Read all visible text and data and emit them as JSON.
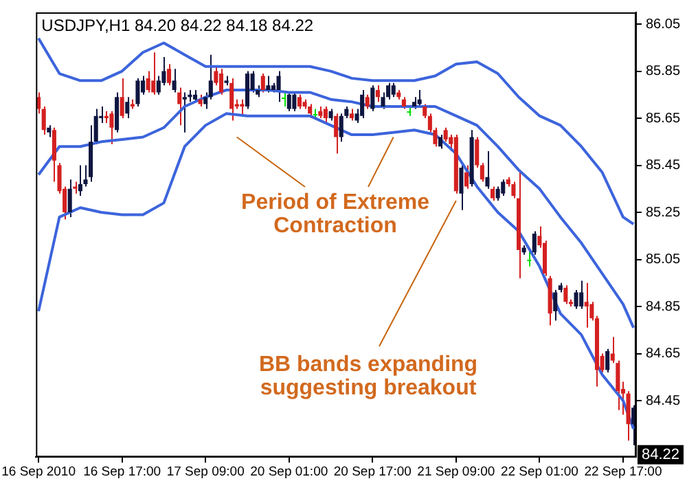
{
  "chart_data": {
    "type": "candlestick",
    "title": "USDJPY,H1 84.20 84.22 84.18 84.22",
    "categories": [
      "16 Sep 2010",
      null,
      null,
      null,
      null,
      null,
      null,
      null,
      null,
      null,
      null,
      null,
      null,
      null,
      null,
      null,
      "16 Sep 17:00",
      null,
      null,
      null,
      null,
      null,
      null,
      null,
      null,
      null,
      null,
      null,
      null,
      null,
      null,
      null,
      "17 Sep 09:00",
      null,
      null,
      null,
      null,
      null,
      null,
      null,
      null,
      null,
      null,
      null,
      null,
      null,
      null,
      null,
      "20 Sep 01:00",
      null,
      null,
      null,
      null,
      null,
      null,
      null,
      null,
      null,
      null,
      null,
      null,
      null,
      null,
      null,
      "20 Sep 17:00",
      null,
      null,
      null,
      null,
      null,
      null,
      null,
      null,
      null,
      null,
      null,
      null,
      null,
      null,
      null,
      "21 Sep 09:00",
      null,
      null,
      null,
      null,
      null,
      null,
      null,
      null,
      null,
      null,
      null,
      null,
      null,
      null,
      null,
      "22 Sep 01:00",
      null,
      null,
      null,
      null,
      null,
      null,
      null,
      null,
      null,
      null,
      null,
      null,
      null,
      null,
      null,
      "22 Sep 17:00",
      null,
      null
    ],
    "ohlc": [
      [
        85.74,
        85.76,
        85.67,
        85.69
      ],
      [
        85.69,
        85.7,
        85.58,
        85.6
      ],
      [
        85.59,
        85.62,
        85.57,
        85.61
      ],
      [
        85.6,
        85.61,
        85.38,
        85.47
      ],
      [
        85.45,
        85.46,
        85.33,
        85.34
      ],
      [
        85.35,
        85.36,
        85.22,
        85.25
      ],
      [
        85.25,
        85.39,
        85.23,
        85.35
      ],
      [
        85.36,
        85.38,
        85.33,
        85.35
      ],
      [
        85.34,
        85.45,
        85.32,
        85.37
      ],
      [
        85.37,
        85.45,
        85.36,
        85.39
      ],
      [
        85.4,
        85.62,
        85.38,
        85.55
      ],
      [
        85.55,
        85.69,
        85.54,
        85.66
      ],
      [
        85.65,
        85.7,
        85.63,
        85.66
      ],
      [
        85.66,
        85.68,
        85.63,
        85.65
      ],
      [
        85.67,
        85.68,
        85.54,
        85.61
      ],
      [
        85.6,
        85.76,
        85.59,
        85.74
      ],
      [
        85.74,
        85.82,
        85.65,
        85.66
      ],
      [
        85.67,
        85.74,
        85.65,
        85.72
      ],
      [
        85.71,
        85.73,
        85.69,
        85.7
      ],
      [
        85.71,
        85.82,
        85.7,
        85.81
      ],
      [
        85.76,
        85.83,
        85.75,
        85.81
      ],
      [
        85.82,
        85.85,
        85.76,
        85.77
      ],
      [
        85.81,
        85.93,
        85.75,
        85.76
      ],
      [
        85.76,
        85.83,
        85.75,
        85.81
      ],
      [
        85.8,
        85.91,
        85.79,
        85.85
      ],
      [
        85.86,
        85.88,
        85.79,
        85.8
      ],
      [
        85.77,
        85.86,
        85.76,
        85.81
      ],
      [
        85.76,
        85.78,
        85.62,
        85.71
      ],
      [
        85.73,
        85.76,
        85.59,
        85.74
      ],
      [
        85.74,
        85.77,
        85.72,
        85.75
      ],
      [
        85.73,
        85.77,
        85.72,
        85.75
      ],
      [
        85.73,
        85.75,
        85.7,
        85.71
      ],
      [
        85.71,
        85.76,
        85.69,
        85.74
      ],
      [
        85.74,
        85.92,
        85.73,
        85.81
      ],
      [
        85.85,
        85.87,
        85.79,
        85.8
      ],
      [
        85.84,
        85.86,
        85.75,
        85.76
      ],
      [
        85.8,
        85.83,
        85.79,
        85.81
      ],
      [
        85.8,
        85.82,
        85.64,
        85.69
      ],
      [
        85.71,
        85.73,
        85.69,
        85.7
      ],
      [
        85.71,
        85.73,
        85.66,
        85.7
      ],
      [
        85.7,
        85.85,
        85.69,
        85.84
      ],
      [
        85.77,
        85.85,
        85.76,
        85.84
      ],
      [
        85.75,
        85.79,
        85.74,
        85.77
      ],
      [
        85.83,
        85.84,
        85.76,
        85.77
      ],
      [
        85.77,
        85.83,
        85.76,
        85.79
      ],
      [
        85.77,
        85.8,
        85.76,
        85.79
      ],
      [
        85.77,
        85.85,
        85.72,
        85.83
      ],
      [
        85.74,
        85.76,
        85.7,
        85.74
      ],
      [
        85.69,
        85.76,
        85.68,
        85.75
      ],
      [
        85.69,
        85.76,
        85.68,
        85.75
      ],
      [
        85.74,
        85.75,
        85.69,
        85.7
      ],
      [
        85.72,
        85.73,
        85.69,
        85.7
      ],
      [
        85.7,
        85.71,
        85.65,
        85.67
      ],
      [
        85.67,
        85.69,
        85.65,
        85.67
      ],
      [
        85.68,
        85.7,
        85.65,
        85.66
      ],
      [
        85.69,
        85.7,
        85.63,
        85.65
      ],
      [
        85.65,
        85.69,
        85.64,
        85.68
      ],
      [
        85.66,
        85.67,
        85.5,
        85.57
      ],
      [
        85.57,
        85.67,
        85.55,
        85.66
      ],
      [
        85.66,
        85.7,
        85.65,
        85.69
      ],
      [
        85.67,
        85.69,
        85.64,
        85.65
      ],
      [
        85.64,
        85.69,
        85.63,
        85.67
      ],
      [
        85.66,
        85.77,
        85.65,
        85.75
      ],
      [
        85.74,
        85.75,
        85.69,
        85.7
      ],
      [
        85.69,
        85.79,
        85.68,
        85.78
      ],
      [
        85.77,
        85.79,
        85.72,
        85.74
      ],
      [
        85.7,
        85.76,
        85.69,
        85.74
      ],
      [
        85.74,
        85.8,
        85.73,
        85.79
      ],
      [
        85.75,
        85.8,
        85.74,
        85.79
      ],
      [
        85.76,
        85.77,
        85.73,
        85.74
      ],
      [
        85.73,
        85.74,
        85.69,
        85.7
      ],
      [
        85.68,
        85.7,
        85.66,
        85.68
      ],
      [
        85.7,
        85.74,
        85.69,
        85.72
      ],
      [
        85.71,
        85.77,
        85.7,
        85.73
      ],
      [
        85.7,
        85.71,
        85.65,
        85.66
      ],
      [
        85.66,
        85.67,
        85.59,
        85.6
      ],
      [
        85.6,
        85.61,
        85.53,
        85.54
      ],
      [
        85.53,
        85.58,
        85.52,
        85.57
      ],
      [
        85.6,
        85.61,
        85.55,
        85.56
      ],
      [
        85.57,
        85.58,
        85.51,
        85.54
      ],
      [
        85.57,
        85.58,
        85.33,
        85.34
      ],
      [
        85.33,
        85.45,
        85.26,
        85.44
      ],
      [
        85.42,
        85.45,
        85.35,
        85.36
      ],
      [
        85.37,
        85.6,
        85.36,
        85.57
      ],
      [
        85.56,
        85.57,
        85.44,
        85.45
      ],
      [
        85.45,
        85.46,
        85.38,
        85.39
      ],
      [
        85.36,
        85.51,
        85.35,
        85.4
      ],
      [
        85.35,
        85.36,
        85.3,
        85.31
      ],
      [
        85.31,
        85.36,
        85.3,
        85.35
      ],
      [
        85.33,
        85.39,
        85.32,
        85.38
      ],
      [
        85.39,
        85.4,
        85.36,
        85.37
      ],
      [
        85.37,
        85.38,
        85.31,
        85.32
      ],
      [
        85.31,
        85.43,
        84.97,
        85.09
      ],
      [
        85.08,
        85.11,
        85.07,
        85.1
      ],
      [
        85.05,
        85.09,
        85.02,
        85.05
      ],
      [
        85.08,
        85.17,
        85.07,
        85.16
      ],
      [
        85.15,
        85.19,
        85.1,
        85.11
      ],
      [
        85.12,
        85.13,
        84.98,
        84.99
      ],
      [
        84.97,
        84.98,
        84.77,
        84.82
      ],
      [
        84.83,
        84.92,
        84.79,
        84.91
      ],
      [
        84.92,
        84.95,
        84.91,
        84.94
      ],
      [
        84.93,
        84.94,
        84.86,
        84.87
      ],
      [
        84.87,
        84.88,
        84.85,
        84.86
      ],
      [
        84.85,
        84.92,
        84.84,
        84.91
      ],
      [
        84.85,
        84.96,
        84.84,
        84.91
      ],
      [
        84.87,
        84.95,
        84.76,
        84.85
      ],
      [
        84.86,
        84.87,
        84.79,
        84.8
      ],
      [
        84.8,
        84.81,
        84.51,
        84.58
      ],
      [
        84.64,
        84.65,
        84.57,
        84.58
      ],
      [
        84.58,
        84.67,
        84.57,
        84.66
      ],
      [
        84.65,
        84.72,
        84.61,
        84.62
      ],
      [
        84.61,
        84.62,
        84.41,
        84.49
      ],
      [
        84.5,
        84.53,
        84.39,
        84.48
      ],
      [
        84.48,
        84.49,
        84.28,
        84.35
      ],
      [
        84.35,
        84.43,
        84.26,
        84.42
      ]
    ],
    "colors": [
      "#d42020",
      "#d42020",
      "#0f1640",
      "#d42020",
      "#d42020",
      "#d42020",
      "#0f1640",
      "#d42020",
      "#0f1640",
      "#0f1640",
      "#0f1640",
      "#0f1640",
      "#0f1640",
      "#d42020",
      "#d42020",
      "#0f1640",
      "#d42020",
      "#0f1640",
      "#d42020",
      "#0f1640",
      "#0f1640",
      "#d42020",
      "#d42020",
      "#0f1640",
      "#0f1640",
      "#d42020",
      "#0f1640",
      "#d42020",
      "#0f1640",
      "#0f1640",
      "#0f1640",
      "#d42020",
      "#0f1640",
      "#0f1640",
      "#d42020",
      "#d42020",
      "#0f1640",
      "#d42020",
      "#d42020",
      "#d42020",
      "#0f1640",
      "#0f1640",
      "#0f1640",
      "#d42020",
      "#0f1640",
      "#0f1640",
      "#0f1640",
      "#00e000",
      "#0f1640",
      "#0f1640",
      "#d42020",
      "#d42020",
      "#d42020",
      "#00e000",
      "#d42020",
      "#d42020",
      "#0f1640",
      "#d42020",
      "#0f1640",
      "#0f1640",
      "#d42020",
      "#0f1640",
      "#0f1640",
      "#d42020",
      "#0f1640",
      "#d42020",
      "#0f1640",
      "#0f1640",
      "#0f1640",
      "#d42020",
      "#d42020",
      "#00e000",
      "#0f1640",
      "#0f1640",
      "#d42020",
      "#d42020",
      "#d42020",
      "#0f1640",
      "#d42020",
      "#d42020",
      "#d42020",
      "#0f1640",
      "#d42020",
      "#0f1640",
      "#d42020",
      "#d42020",
      "#0f1640",
      "#d42020",
      "#0f1640",
      "#0f1640",
      "#d42020",
      "#d42020",
      "#d42020",
      "#0f1640",
      "#00e000",
      "#0f1640",
      "#d42020",
      "#d42020",
      "#d42020",
      "#0f1640",
      "#0f1640",
      "#d42020",
      "#d42020",
      "#0f1640",
      "#0f1640",
      "#d42020",
      "#d42020",
      "#d42020",
      "#d42020",
      "#0f1640",
      "#d42020",
      "#d42020",
      "#d42020",
      "#d42020",
      "#0f1640"
    ],
    "series": [
      {
        "type": "line",
        "color": "#3c64dc",
        "values": [
          85.99,
          null,
          null,
          null,
          85.84,
          null,
          null,
          null,
          85.81,
          null,
          null,
          null,
          85.81,
          null,
          null,
          null,
          85.85,
          null,
          null,
          null,
          85.93,
          null,
          null,
          null,
          85.97,
          null,
          null,
          null,
          85.92,
          null,
          null,
          null,
          85.87,
          null,
          null,
          null,
          85.87,
          null,
          null,
          null,
          85.87,
          null,
          null,
          null,
          85.87,
          null,
          null,
          null,
          85.87,
          null,
          null,
          null,
          85.87,
          null,
          null,
          null,
          85.85,
          null,
          null,
          null,
          85.82,
          null,
          null,
          null,
          85.81,
          null,
          null,
          null,
          85.81,
          null,
          null,
          null,
          85.81,
          null,
          null,
          null,
          85.83,
          null,
          null,
          null,
          85.88,
          null,
          null,
          null,
          85.89,
          null,
          null,
          null,
          85.84,
          null,
          null,
          null,
          85.74,
          null,
          null,
          null,
          85.66,
          null,
          null,
          null,
          85.62,
          null,
          null,
          null,
          85.53,
          null,
          null,
          null,
          85.42,
          null,
          null,
          null,
          85.23,
          null,
          85.2
        ]
      },
      {
        "type": "line",
        "color": "#3c64dc",
        "values": [
          85.41,
          null,
          null,
          null,
          85.53,
          null,
          null,
          null,
          85.53,
          null,
          null,
          null,
          85.55,
          null,
          null,
          null,
          85.56,
          null,
          null,
          null,
          85.57,
          null,
          null,
          null,
          85.61,
          null,
          null,
          null,
          85.7,
          null,
          null,
          null,
          85.74,
          null,
          null,
          null,
          85.77,
          null,
          null,
          null,
          85.77,
          null,
          null,
          null,
          85.77,
          null,
          null,
          null,
          85.76,
          null,
          null,
          null,
          85.76,
          null,
          null,
          null,
          85.73,
          null,
          null,
          null,
          85.72,
          null,
          null,
          null,
          85.7,
          null,
          null,
          null,
          85.7,
          null,
          null,
          null,
          85.7,
          null,
          null,
          null,
          85.7,
          null,
          null,
          null,
          85.66,
          null,
          null,
          null,
          85.62,
          null,
          null,
          null,
          85.53,
          null,
          null,
          null,
          85.43,
          null,
          null,
          null,
          85.35,
          null,
          null,
          null,
          85.23,
          null,
          null,
          null,
          85.12,
          null,
          null,
          null,
          84.99,
          null,
          null,
          null,
          84.86,
          null,
          84.76
        ]
      },
      {
        "type": "line",
        "color": "#3c64dc",
        "values": [
          84.83,
          null,
          null,
          null,
          85.23,
          null,
          null,
          null,
          85.27,
          null,
          null,
          null,
          85.25,
          null,
          null,
          null,
          85.24,
          null,
          null,
          null,
          85.24,
          null,
          null,
          null,
          85.29,
          null,
          null,
          null,
          85.53,
          null,
          null,
          null,
          85.62,
          null,
          null,
          null,
          85.67,
          null,
          null,
          null,
          85.66,
          null,
          null,
          null,
          85.66,
          null,
          null,
          null,
          85.66,
          null,
          null,
          null,
          85.66,
          null,
          null,
          null,
          85.62,
          null,
          null,
          null,
          85.58,
          null,
          null,
          null,
          85.58,
          null,
          null,
          null,
          85.59,
          null,
          null,
          null,
          85.6,
          null,
          null,
          null,
          85.58,
          null,
          null,
          null,
          85.5,
          null,
          null,
          null,
          85.36,
          null,
          null,
          null,
          85.25,
          null,
          null,
          null,
          85.17,
          null,
          null,
          null,
          85.02,
          null,
          null,
          null,
          84.82,
          null,
          null,
          null,
          84.73,
          null,
          null,
          null,
          84.56,
          null,
          null,
          null,
          84.45,
          null,
          84.33
        ]
      }
    ],
    "ylim": [
      84.21,
      86.1
    ],
    "yticks": [
      84.45,
      84.65,
      84.85,
      85.05,
      85.25,
      85.45,
      85.65,
      85.85,
      86.05
    ],
    "grid": false,
    "legend": false,
    "annotations": [
      {
        "text": "Period of Extreme Contraction",
        "y": 85.57
      },
      {
        "text": "BB bands expanding suggesting breakout",
        "x": "21 Sep 09:00",
        "y": 85.3
      },
      {
        "text": "84.22",
        "y": 84.22
      }
    ]
  }
}
